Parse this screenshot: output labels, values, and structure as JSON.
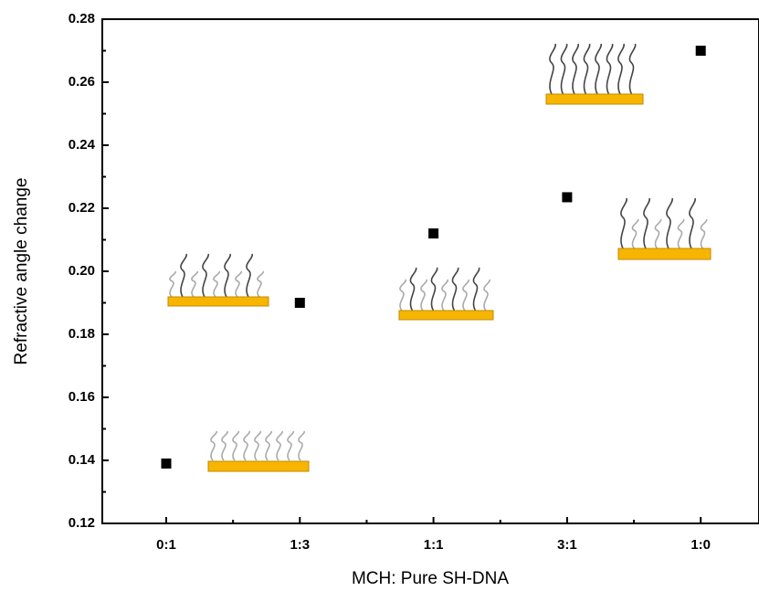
{
  "chart_data": {
    "type": "scatter",
    "x_label": "MCH: Pure SH-DNA",
    "y_label": "Refractive angle change",
    "categories": [
      "0:1",
      "1:3",
      "1:1",
      "3:1",
      "1:0"
    ],
    "values": [
      0.139,
      0.19,
      0.212,
      0.2235,
      0.27
    ],
    "color": "#000000",
    "ylim": [
      0.12,
      0.28
    ],
    "yticks": [
      0.12,
      0.14,
      0.16,
      0.18,
      {
        "value": 0.2,
        "label": "0.20"
      },
      0.22,
      0.24,
      0.26,
      0.28
    ]
  }
}
